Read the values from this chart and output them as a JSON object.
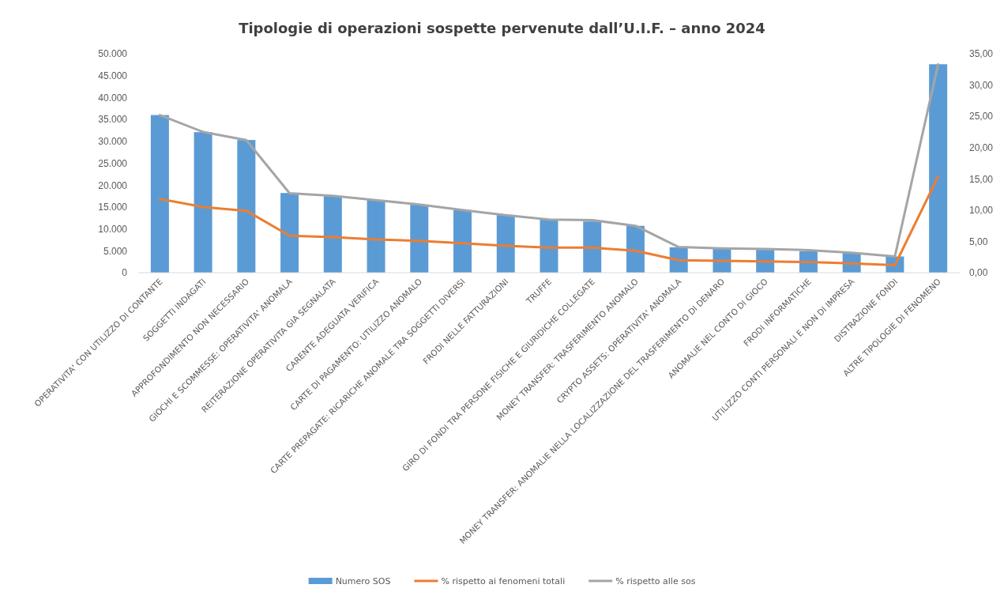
{
  "chart_data": {
    "type": "bar",
    "title": "Tipologie di operazioni sospette pervenute dall’U.I.F. – anno 2024",
    "categories": [
      "OPERATIVITA' CON UTILIZZO DI CONTANTE",
      "SOGGETTI INDAGATI",
      "APPROFONDIMENTO NON NECESSARIO",
      "GIOCHI E SCOMMESSE: OPERATIVITA' ANOMALA",
      "REITERAZIONE OPERATIVITA GIA SEGNALATA",
      "CARENTE ADEGUATA VERIFICA",
      "CARTE DI PAGAMENTO: UTILIZZO ANOMALO",
      "CARTE PREPAGATE: RICARICHE ANOMALE TRA SOGGETTI DIVERSI",
      "FRODI NELLE FATTURAZIONI",
      "TRUFFE",
      "GIRO DI FONDI TRA PERSONE FISICHE E GIURIDICHE COLLEGATE",
      "MONEY TRANSFER: TRASFERIMENTO ANOMALO",
      "CRYPTO ASSETS: OPERATIVITA' ANOMALA",
      "MONEY TRANSFER: ANOMALIE NELLA LOCALIZZAZIONE DEL TRASFERIMENTO DI DENARO",
      "ANOMALIE NEL CONTO DI GIOCO",
      "FRODI INFORMATICHE",
      "UTILIZZO CONTI PERSONALI E NON DI IMPRESA",
      "DISTRAZIONE FONDI",
      "ALTRE TIPOLOGIE DI FENOMENO"
    ],
    "series": [
      {
        "name": "Numero SOS",
        "color": "#5b9bd5",
        "values": [
          36000,
          32100,
          30300,
          18200,
          17500,
          16600,
          15500,
          14300,
          13200,
          12100,
          11700,
          10700,
          5800,
          5400,
          5200,
          4900,
          4500,
          3700,
          47600
        ]
      },
      {
        "name": "% rispetto ai fenomeni totali",
        "type": "line",
        "axis": "y2",
        "color": "#ed7d31",
        "values": [
          11.8,
          10.5,
          9.9,
          5.9,
          5.7,
          5.3,
          5.1,
          4.7,
          4.3,
          4.0,
          4.0,
          3.5,
          2.0,
          1.9,
          1.8,
          1.7,
          1.5,
          1.2,
          15.4
        ]
      },
      {
        "name": "% rispetto alle sos",
        "type": "line",
        "axis": "y2",
        "color": "#a5a5a5",
        "values": [
          25.2,
          22.5,
          21.2,
          12.7,
          12.3,
          11.6,
          10.9,
          10.0,
          9.2,
          8.5,
          8.4,
          7.5,
          4.1,
          3.9,
          3.8,
          3.6,
          3.2,
          2.6,
          33.3
        ]
      }
    ],
    "ylim": [
      0,
      50000
    ],
    "yticks": [
      0,
      {
        "value": 5000,
        "label": "5.000"
      },
      {
        "value": 10000,
        "label": "10.000"
      },
      {
        "value": 15000,
        "label": "15.000"
      },
      {
        "value": 20000,
        "label": "20.000"
      },
      {
        "value": 25000,
        "label": "25.000"
      },
      {
        "value": 30000,
        "label": "30.000"
      },
      {
        "value": 35000,
        "label": "35.000"
      },
      {
        "value": 40000,
        "label": "40.000"
      },
      {
        "value": 45000,
        "label": "45.000"
      },
      {
        "value": 50000,
        "label": "50.000"
      }
    ],
    "y2lim": [
      0,
      35
    ],
    "y2ticks": [
      {
        "value": 0,
        "label": "0,00"
      },
      {
        "value": 5,
        "label": "5,00"
      },
      {
        "value": 10,
        "label": "10,00"
      },
      {
        "value": 15,
        "label": "15,00"
      },
      {
        "value": 20,
        "label": "20,00"
      },
      {
        "value": 25,
        "label": "25,00"
      },
      {
        "value": 30,
        "label": "30,00"
      },
      {
        "value": 35,
        "label": "35,00"
      }
    ],
    "grid": false,
    "legend": "bottom"
  }
}
